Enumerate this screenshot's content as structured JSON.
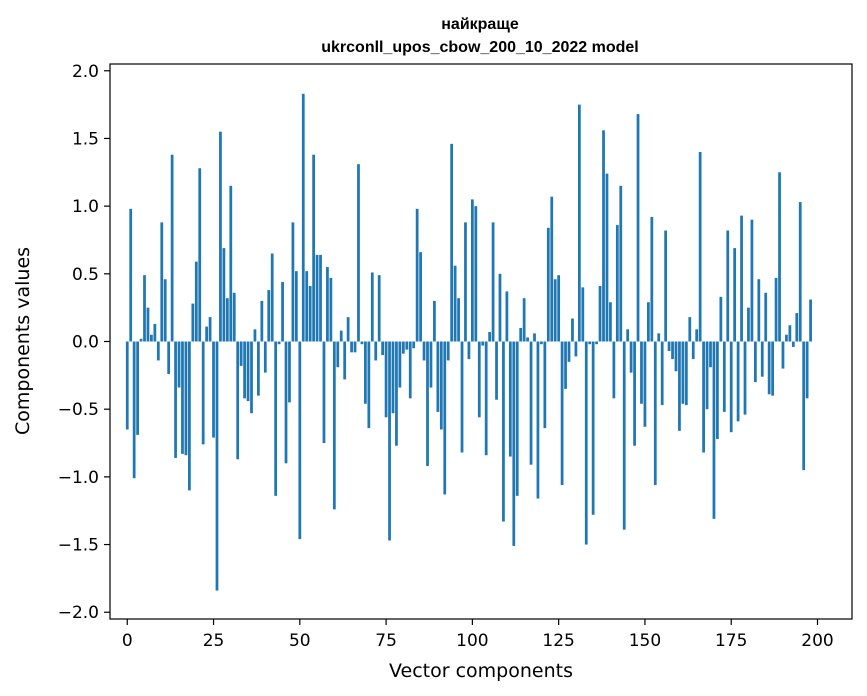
{
  "chart_data": {
    "type": "bar",
    "title": "найкраще",
    "subtitle": "ukrconll_upos_cbow_200_10_2022 model",
    "xlabel": "Vector components",
    "ylabel": "Components values",
    "xlim": [
      -5,
      210
    ],
    "ylim": [
      -2.05,
      2.05
    ],
    "xticks": [
      0,
      25,
      50,
      75,
      100,
      125,
      150,
      175,
      200
    ],
    "yticks": [
      -2.0,
      -1.5,
      -1.0,
      -0.5,
      0.0,
      0.5,
      1.0,
      1.5,
      2.0
    ],
    "ytick_labels": [
      "−2.0",
      "−1.5",
      "−1.0",
      "−0.5",
      "0.0",
      "0.5",
      "1.0",
      "1.5",
      "2.0"
    ],
    "bar_color": "#1f77b4",
    "grid": false,
    "values": [
      -0.65,
      0.98,
      -1.01,
      -0.69,
      0.02,
      0.49,
      0.25,
      0.05,
      0.13,
      -0.14,
      0.88,
      0.46,
      -0.24,
      1.38,
      -0.86,
      -0.34,
      -0.83,
      -0.84,
      -1.1,
      0.28,
      0.59,
      1.28,
      -0.76,
      0.11,
      0.18,
      -0.71,
      -1.84,
      1.55,
      0.69,
      0.32,
      1.15,
      0.36,
      -0.87,
      -0.18,
      -0.42,
      -0.44,
      -0.53,
      0.09,
      -0.4,
      0.3,
      -0.23,
      0.38,
      0.65,
      -1.14,
      -0.02,
      0.44,
      -0.9,
      -0.45,
      0.88,
      0.52,
      -1.46,
      1.83,
      0.52,
      0.41,
      1.38,
      0.64,
      0.64,
      -0.75,
      0.55,
      0.47,
      -1.24,
      -0.19,
      0.08,
      -0.28,
      0.18,
      -0.08,
      -0.08,
      1.31,
      -0.02,
      -0.46,
      -0.64,
      0.51,
      -0.14,
      0.49,
      -0.1,
      -0.56,
      -1.47,
      -0.53,
      -0.77,
      -0.34,
      -0.09,
      -0.06,
      -0.42,
      -0.05,
      0.98,
      0.66,
      -0.14,
      -0.92,
      -0.34,
      0.3,
      -0.52,
      -0.65,
      -1.13,
      -0.14,
      1.46,
      0.56,
      0.32,
      -0.82,
      0.88,
      -0.13,
      1.05,
      1.0,
      -0.56,
      -0.03,
      -0.84,
      0.07,
      0.88,
      -0.43,
      0.5,
      -1.33,
      0.37,
      -0.85,
      -1.51,
      -1.14,
      0.1,
      0.32,
      0.03,
      -0.91,
      0.06,
      -1.16,
      -0.02,
      -0.64,
      0.84,
      1.07,
      0.46,
      0.49,
      -1.06,
      -0.35,
      -0.15,
      0.17,
      -0.11,
      1.75,
      0.4,
      -1.5,
      -0.02,
      -1.28,
      -0.02,
      0.41,
      1.56,
      1.24,
      0.29,
      -0.42,
      0.86,
      1.15,
      -1.39,
      0.09,
      -0.23,
      -0.77,
      1.68,
      -0.46,
      -0.63,
      0.29,
      0.92,
      -1.06,
      0.06,
      -0.47,
      0.82,
      -0.07,
      -0.13,
      -0.22,
      -0.66,
      -0.46,
      -0.47,
      0.18,
      -0.13,
      0.09,
      1.4,
      -0.82,
      -0.5,
      -0.19,
      -1.31,
      -0.72,
      0.33,
      -0.52,
      0.82,
      -0.67,
      0.69,
      -0.59,
      0.93,
      -0.54,
      0.25,
      0.9,
      -0.3,
      0.46,
      -0.26,
      0.36,
      -0.39,
      -0.4,
      0.47,
      1.25,
      -0.2,
      0.05,
      0.12,
      -0.04,
      0.21,
      1.03,
      -0.95,
      -0.42,
      0.31
    ]
  }
}
